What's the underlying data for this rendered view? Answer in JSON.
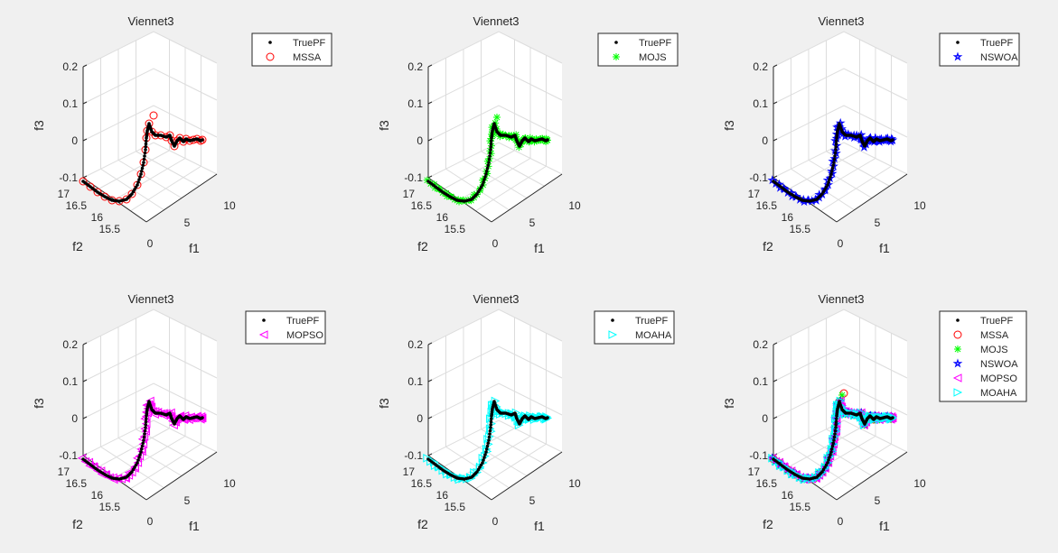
{
  "figure": {
    "background": "#f0f0f0",
    "colors": {
      "truepf": "#000000",
      "mssa": "#ff0000",
      "mojs": "#00ff00",
      "nswoa": "#0000ff",
      "mopso": "#ff00ff",
      "moaha": "#00ffff",
      "grid": "#dcdcdc",
      "axis": "#262626",
      "ticks": "#262626"
    }
  },
  "chart_data": [
    {
      "type": "scatter3d",
      "title": "Viennet3",
      "xlabel": "f1",
      "ylabel": "f2",
      "zlabel": "f3",
      "xticks": [
        "0",
        "5",
        "10"
      ],
      "yticks": [
        "15.5",
        "16",
        "16.5",
        "17"
      ],
      "zticks": [
        "-0.1",
        "0",
        "0.1",
        "0.2"
      ],
      "xlim": [
        0,
        10
      ],
      "ylim": [
        15,
        17
      ],
      "zlim": [
        -0.1,
        0.2
      ],
      "legend": [
        {
          "label": "TruePF",
          "marker": "dot"
        },
        {
          "label": "MSSA",
          "marker": "circle"
        }
      ],
      "series": [
        "truepf",
        "mssa"
      ]
    },
    {
      "type": "scatter3d",
      "title": "Viennet3",
      "xlabel": "f1",
      "ylabel": "f2",
      "zlabel": "f3",
      "xticks": [
        "0",
        "5",
        "10"
      ],
      "yticks": [
        "15.5",
        "16",
        "16.5",
        "17"
      ],
      "zticks": [
        "-0.1",
        "0",
        "0.1",
        "0.2"
      ],
      "xlim": [
        0,
        10
      ],
      "ylim": [
        15,
        17
      ],
      "zlim": [
        -0.1,
        0.2
      ],
      "legend": [
        {
          "label": "TruePF",
          "marker": "dot"
        },
        {
          "label": "MOJS",
          "marker": "asterisk"
        }
      ],
      "series": [
        "truepf",
        "mojs"
      ]
    },
    {
      "type": "scatter3d",
      "title": "Viennet3",
      "xlabel": "f1",
      "ylabel": "f2",
      "zlabel": "f3",
      "xticks": [
        "0",
        "5",
        "10"
      ],
      "yticks": [
        "15.5",
        "16",
        "16.5",
        "17"
      ],
      "zticks": [
        "-0.1",
        "0",
        "0.1",
        "0.2"
      ],
      "xlim": [
        0,
        10
      ],
      "ylim": [
        15,
        17
      ],
      "zlim": [
        -0.1,
        0.2
      ],
      "legend": [
        {
          "label": "TruePF",
          "marker": "dot"
        },
        {
          "label": "NSWOA",
          "marker": "pentagram"
        }
      ],
      "series": [
        "truepf",
        "nswoa"
      ]
    },
    {
      "type": "scatter3d",
      "title": "Viennet3",
      "xlabel": "f1",
      "ylabel": "f2",
      "zlabel": "f3",
      "xticks": [
        "0",
        "5",
        "10"
      ],
      "yticks": [
        "15.5",
        "16",
        "16.5",
        "17"
      ],
      "zticks": [
        "-0.1",
        "0",
        "0.1",
        "0.2"
      ],
      "xlim": [
        0,
        10
      ],
      "ylim": [
        15,
        17
      ],
      "zlim": [
        -0.1,
        0.2
      ],
      "legend": [
        {
          "label": "TruePF",
          "marker": "dot"
        },
        {
          "label": "MOPSO",
          "marker": "triangle-left"
        }
      ],
      "series": [
        "truepf",
        "mopso"
      ]
    },
    {
      "type": "scatter3d",
      "title": "Viennet3",
      "xlabel": "f1",
      "ylabel": "f2",
      "zlabel": "f3",
      "xticks": [
        "0",
        "5",
        "10"
      ],
      "yticks": [
        "15.5",
        "16",
        "16.5",
        "17"
      ],
      "zticks": [
        "-0.1",
        "0",
        "0.1",
        "0.2"
      ],
      "xlim": [
        0,
        10
      ],
      "ylim": [
        15,
        17
      ],
      "zlim": [
        -0.1,
        0.2
      ],
      "legend": [
        {
          "label": "TruePF",
          "marker": "dot"
        },
        {
          "label": "MOAHA",
          "marker": "triangle-right"
        }
      ],
      "series": [
        "truepf",
        "moaha"
      ]
    },
    {
      "type": "scatter3d",
      "title": "Viennet3",
      "xlabel": "f1",
      "ylabel": "f2",
      "zlabel": "f3",
      "xticks": [
        "0",
        "5",
        "10"
      ],
      "yticks": [
        "15.5",
        "16",
        "16.5",
        "17"
      ],
      "zticks": [
        "-0.1",
        "0",
        "0.1",
        "0.2"
      ],
      "xlim": [
        0,
        10
      ],
      "ylim": [
        15,
        17
      ],
      "zlim": [
        -0.1,
        0.2
      ],
      "legend": [
        {
          "label": "TruePF",
          "marker": "dot"
        },
        {
          "label": "MSSA",
          "marker": "circle"
        },
        {
          "label": "MOJS",
          "marker": "asterisk"
        },
        {
          "label": "NSWOA",
          "marker": "pentagram"
        },
        {
          "label": "MOPSO",
          "marker": "triangle-left"
        },
        {
          "label": "MOAHA",
          "marker": "triangle-right"
        }
      ],
      "series": [
        "truepf",
        "mssa",
        "mojs",
        "nswoa",
        "mopso",
        "moaha"
      ]
    }
  ],
  "front": {
    "description_points_f1_f2_f3": [
      [
        0.0,
        17.0,
        -0.095
      ],
      [
        0.3,
        16.7,
        -0.1
      ],
      [
        0.7,
        16.4,
        -0.1
      ],
      [
        1.0,
        16.2,
        -0.095
      ],
      [
        1.3,
        16.0,
        -0.08
      ],
      [
        1.5,
        15.85,
        -0.06
      ],
      [
        1.7,
        15.72,
        -0.04
      ],
      [
        1.85,
        15.6,
        -0.02
      ],
      [
        1.95,
        15.5,
        0.0
      ],
      [
        2.0,
        15.42,
        0.02
      ],
      [
        2.0,
        15.38,
        0.04
      ],
      [
        2.2,
        15.35,
        0.035
      ],
      [
        2.6,
        15.3,
        0.02
      ],
      [
        3.2,
        15.3,
        0.0
      ],
      [
        3.6,
        15.32,
        0.0
      ],
      [
        4.0,
        15.2,
        0.0
      ],
      [
        4.4,
        15.1,
        0.005
      ],
      [
        4.8,
        15.05,
        0.0
      ],
      [
        5.2,
        15.0,
        0.002
      ]
    ]
  }
}
